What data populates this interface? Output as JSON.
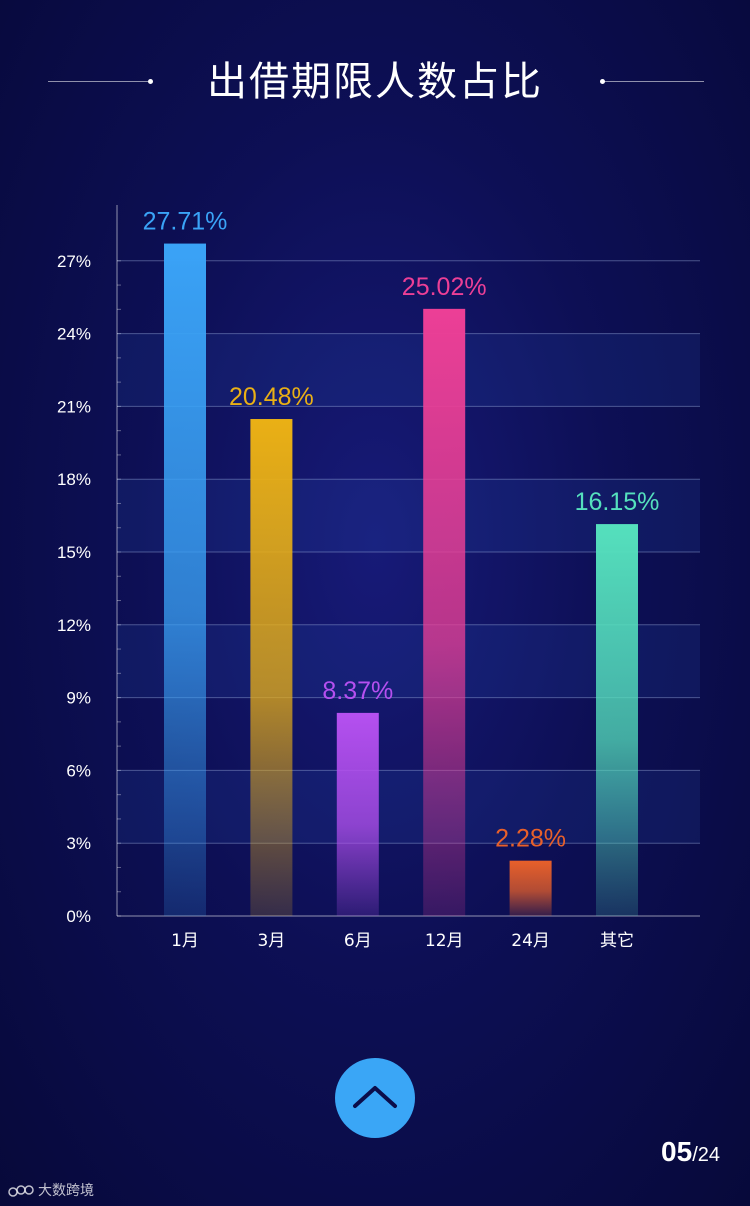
{
  "header": {
    "title": "出借期限人数占比"
  },
  "chart_data": {
    "type": "bar",
    "categories": [
      "1月",
      "3月",
      "6月",
      "12月",
      "24月",
      "其它"
    ],
    "values": [
      27.71,
      20.48,
      8.37,
      25.02,
      2.28,
      16.15
    ],
    "value_labels": [
      "27.71%",
      "20.48%",
      "8.37%",
      "25.02%",
      "2.28%",
      "16.15%"
    ],
    "bar_colors": [
      "#3aa3f7",
      "#eab015",
      "#b550f0",
      "#ec3f96",
      "#e8602a",
      "#55e0bd"
    ],
    "ylim": [
      0,
      30
    ],
    "yticks": [
      0,
      3,
      6,
      9,
      12,
      15,
      18,
      21,
      24,
      27
    ],
    "ytick_labels": [
      "0%",
      "3%",
      "6%",
      "9%",
      "12%",
      "15%",
      "18%",
      "21%",
      "24%",
      "27%"
    ],
    "grid": true,
    "legend": "none"
  },
  "nav": {
    "up_icon": "chevron-up-icon"
  },
  "pager": {
    "current": "05",
    "separator": "/",
    "total": "24"
  },
  "watermark": {
    "text": "大数跨境"
  }
}
